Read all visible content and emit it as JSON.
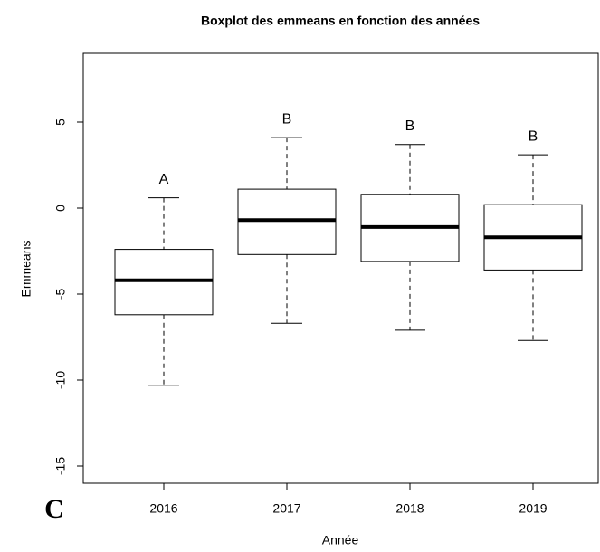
{
  "panel_label": "C",
  "chart_data": {
    "type": "boxplot",
    "title": "Boxplot des emmeans en fonction des années",
    "x_label": "Année",
    "y_label": "Emmeans",
    "categories": [
      "2016",
      "2017",
      "2018",
      "2019"
    ],
    "boxes": [
      {
        "whislo": -10.3,
        "q1": -6.2,
        "median": -4.2,
        "q3": -2.4,
        "whishi": 0.6
      },
      {
        "whislo": -6.7,
        "q1": -2.7,
        "median": -0.7,
        "q3": 1.1,
        "whishi": 4.1
      },
      {
        "whislo": -7.1,
        "q1": -3.1,
        "median": -1.1,
        "q3": 0.8,
        "whishi": 3.7
      },
      {
        "whislo": -7.7,
        "q1": -3.6,
        "median": -1.7,
        "q3": 0.2,
        "whishi": 3.1
      }
    ],
    "annotations": [
      "A",
      "B",
      "B",
      "B"
    ],
    "ylim": [
      -16,
      9
    ],
    "yticks": [
      -15,
      -10,
      -5,
      0,
      5
    ],
    "color": "#000000"
  }
}
